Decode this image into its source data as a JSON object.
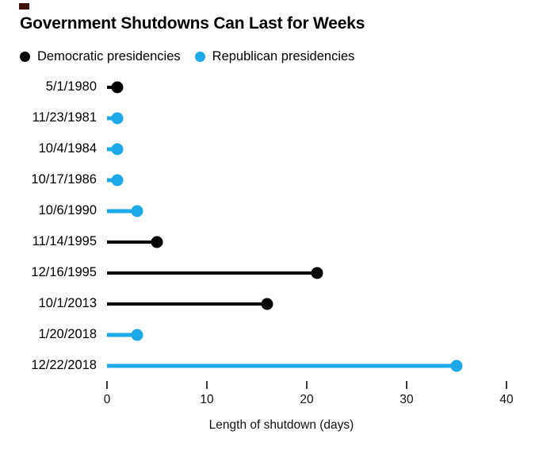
{
  "title": "Government Shutdowns Can Last for Weeks",
  "brand": {
    "mark_color": "#3e100e"
  },
  "colors": {
    "democratic": "#000000",
    "republican": "#1da9e8",
    "tick": "#3a3a3a"
  },
  "legend": {
    "items": [
      {
        "label": "Democratic presidencies",
        "party": "Democratic",
        "color": "#000000"
      },
      {
        "label": "Republican presidencies",
        "party": "Republican",
        "color": "#1da9e8"
      }
    ]
  },
  "chart_data": {
    "type": "bar",
    "variant": "lollipop",
    "orientation": "horizontal",
    "title": "Government Shutdowns Can Last for Weeks",
    "categories": [
      "5/1/1980",
      "11/23/1981",
      "10/4/1984",
      "10/17/1986",
      "10/6/1990",
      "11/14/1995",
      "12/16/1995",
      "10/1/2013",
      "1/20/2018",
      "12/22/2018"
    ],
    "values": [
      1,
      1,
      1,
      1,
      3,
      5,
      21,
      16,
      3,
      35
    ],
    "parties": [
      "Democratic",
      "Republican",
      "Republican",
      "Republican",
      "Republican",
      "Democratic",
      "Democratic",
      "Democratic",
      "Republican",
      "Republican"
    ],
    "xlabel": "Length of shutdown (days)",
    "ylabel": "",
    "x_ticks": [
      0,
      10,
      20,
      30,
      40
    ],
    "xlim": [
      0,
      40
    ],
    "grid": false,
    "legend_position": "top"
  }
}
